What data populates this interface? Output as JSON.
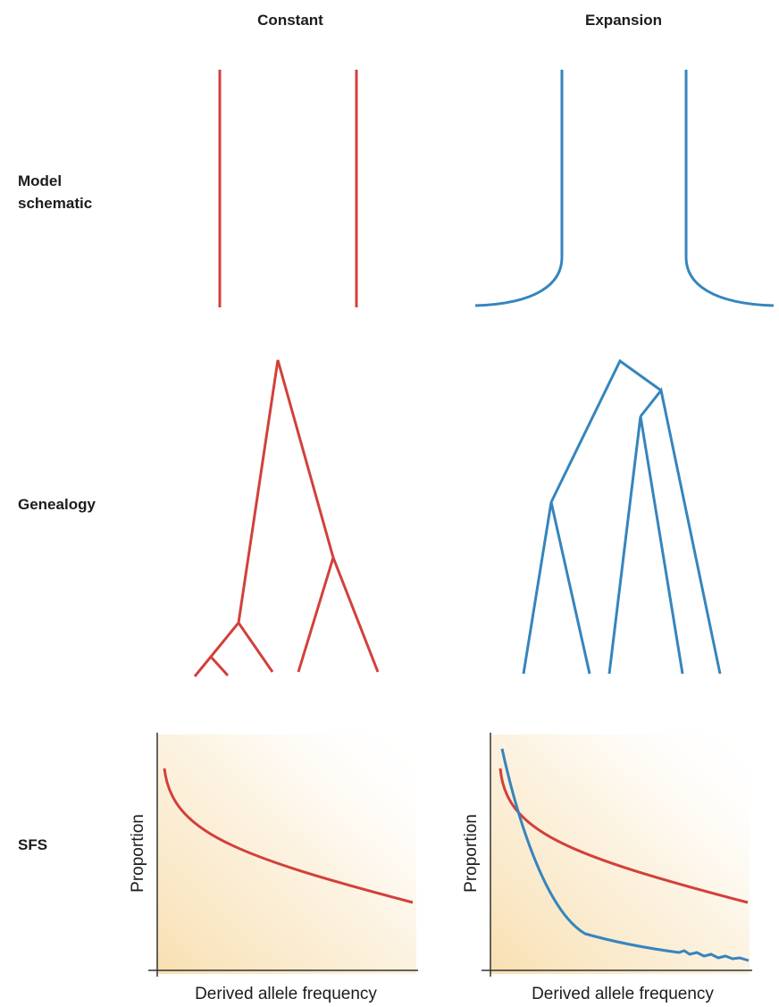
{
  "columns": {
    "constant": "Constant",
    "expansion": "Expansion"
  },
  "rows": {
    "model": "Model\nschematic",
    "genealogy": "Genealogy",
    "sfs": "SFS"
  },
  "colors": {
    "constant": "#d2403b",
    "expansion": "#3585bd",
    "plot_fill": "#f8dfb0"
  },
  "sfs_axes": {
    "xlabel": "Derived allele frequency",
    "ylabel": "Proportion"
  }
}
